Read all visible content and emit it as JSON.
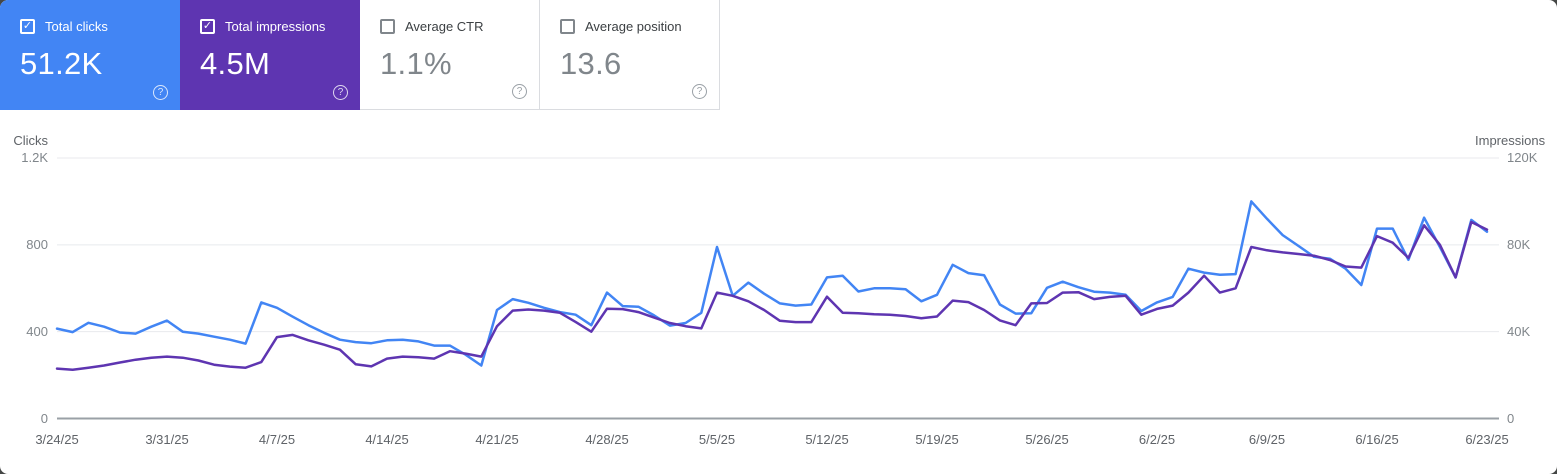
{
  "colors": {
    "clicks": "#4285f4",
    "impressions": "#5e35b1",
    "grid": "#e8eaed",
    "zero_axis": "#9aa0a6",
    "tick_text": "#80868b",
    "label_text": "#5f6368"
  },
  "cards": [
    {
      "id": "total-clicks",
      "label": "Total clicks",
      "value": "51.2K",
      "selected": true,
      "bg": "#4285f4"
    },
    {
      "id": "total-impressions",
      "label": "Total impressions",
      "value": "4.5M",
      "selected": true,
      "bg": "#5e35b1"
    },
    {
      "id": "average-ctr",
      "label": "Average CTR",
      "value": "1.1%",
      "selected": false,
      "bg": "#ffffff"
    },
    {
      "id": "average-position",
      "label": "Average position",
      "value": "13.6",
      "selected": false,
      "bg": "#ffffff"
    }
  ],
  "help_glyph": "?",
  "check_glyph": "✓",
  "chart_data": {
    "type": "line",
    "dual_axis": true,
    "grid": "horizontal-only",
    "left_axis": {
      "title": "Clicks",
      "ticks": [
        "1.2K",
        "800",
        "400",
        "0"
      ],
      "max": 1200
    },
    "right_axis": {
      "title": "Impressions",
      "ticks": [
        "120K",
        "80K",
        "40K",
        "0"
      ],
      "max": 120000
    },
    "x_tick_labels": [
      "3/24/25",
      "3/31/25",
      "4/7/25",
      "4/14/25",
      "4/21/25",
      "4/28/25",
      "5/5/25",
      "5/12/25",
      "5/19/25",
      "5/26/25",
      "6/2/25",
      "6/9/25",
      "6/16/25",
      "6/23/25"
    ],
    "dates": [
      "3/24/25",
      "3/25/25",
      "3/26/25",
      "3/27/25",
      "3/28/25",
      "3/29/25",
      "3/30/25",
      "3/31/25",
      "4/1/25",
      "4/2/25",
      "4/3/25",
      "4/4/25",
      "4/5/25",
      "4/6/25",
      "4/7/25",
      "4/8/25",
      "4/9/25",
      "4/10/25",
      "4/11/25",
      "4/12/25",
      "4/13/25",
      "4/14/25",
      "4/15/25",
      "4/16/25",
      "4/17/25",
      "4/18/25",
      "4/19/25",
      "4/20/25",
      "4/21/25",
      "4/22/25",
      "4/23/25",
      "4/24/25",
      "4/25/25",
      "4/26/25",
      "4/27/25",
      "4/28/25",
      "4/29/25",
      "4/30/25",
      "5/1/25",
      "5/2/25",
      "5/3/25",
      "5/4/25",
      "5/5/25",
      "5/6/25",
      "5/7/25",
      "5/8/25",
      "5/9/25",
      "5/10/25",
      "5/11/25",
      "5/12/25",
      "5/13/25",
      "5/14/25",
      "5/15/25",
      "5/16/25",
      "5/17/25",
      "5/18/25",
      "5/19/25",
      "5/20/25",
      "5/21/25",
      "5/22/25",
      "5/23/25",
      "5/24/25",
      "5/25/25",
      "5/26/25",
      "5/27/25",
      "5/28/25",
      "5/29/25",
      "5/30/25",
      "5/31/25",
      "6/1/25",
      "6/2/25",
      "6/3/25",
      "6/4/25",
      "6/5/25",
      "6/6/25",
      "6/7/25",
      "6/8/25",
      "6/9/25",
      "6/10/25",
      "6/11/25",
      "6/12/25",
      "6/13/25",
      "6/14/25",
      "6/15/25",
      "6/16/25",
      "6/17/25",
      "6/18/25",
      "6/19/25",
      "6/20/25",
      "6/21/25",
      "6/22/25",
      "6/23/25"
    ],
    "series": [
      {
        "name": "Total clicks",
        "axis": "left",
        "color": "#4285f4",
        "values": [
          414,
          398,
          441,
          423,
          396,
          391,
          423,
          451,
          400,
          391,
          377,
          363,
          345,
          535,
          510,
          469,
          430,
          395,
          363,
          352,
          347,
          360,
          363,
          355,
          336,
          336,
          294,
          244,
          500,
          550,
          533,
          510,
          490,
          478,
          430,
          580,
          518,
          515,
          475,
          428,
          440,
          487,
          790,
          565,
          626,
          575,
          530,
          520,
          525,
          650,
          658,
          585,
          600,
          600,
          595,
          540,
          570,
          708,
          670,
          660,
          525,
          483,
          485,
          602,
          630,
          605,
          584,
          580,
          570,
          495,
          535,
          560,
          690,
          672,
          662,
          665,
          1000,
          920,
          845,
          795,
          745,
          736,
          690,
          615,
          875,
          875,
          731,
          925,
          790,
          650,
          915,
          860
        ]
      },
      {
        "name": "Total impressions",
        "axis": "right",
        "color": "#5e35b1",
        "values": [
          23000,
          22500,
          23400,
          24400,
          25800,
          27100,
          28000,
          28500,
          28000,
          26700,
          24800,
          23900,
          23400,
          26000,
          37500,
          38500,
          36000,
          34000,
          31700,
          25000,
          24000,
          27600,
          28500,
          28200,
          27600,
          31000,
          29900,
          28500,
          42500,
          49700,
          50200,
          49700,
          48700,
          44500,
          40000,
          50600,
          50400,
          49000,
          46500,
          44000,
          42500,
          41500,
          58000,
          56500,
          54000,
          50000,
          45000,
          44400,
          44400,
          56100,
          48700,
          48500,
          48000,
          47800,
          47200,
          46200,
          47000,
          54300,
          53600,
          50000,
          45200,
          43000,
          53000,
          53200,
          58000,
          58200,
          55000,
          56000,
          56500,
          47800,
          50500,
          52000,
          58000,
          65800,
          58000,
          60000,
          79000,
          77500,
          76500,
          75800,
          75000,
          73000,
          70000,
          69500,
          84000,
          81000,
          74000,
          89000,
          80000,
          65000,
          90500,
          87000
        ]
      }
    ]
  }
}
